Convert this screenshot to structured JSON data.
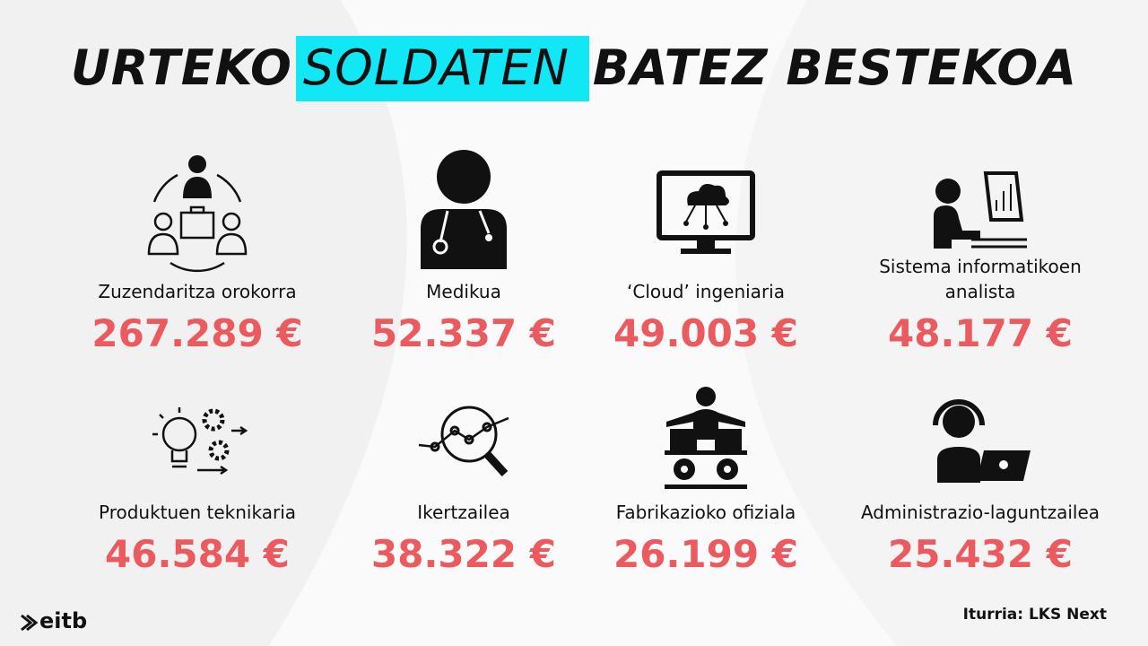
{
  "title": {
    "before": "URTEKO",
    "highlight": "SOLDATEN",
    "after": "BATEZ BESTEKOA"
  },
  "items": [
    {
      "label": "Zuzendaritza orokorra",
      "value": "267.289 €"
    },
    {
      "label": "Medikua",
      "value": "52.337 €"
    },
    {
      "label": "‘Cloud’ ingeniaria",
      "value": "49.003 €"
    },
    {
      "label": "Sistema informatikoen analista",
      "value": "48.177 €"
    },
    {
      "label": "Produktuen teknikaria",
      "value": "46.584 €"
    },
    {
      "label": "Ikertzailea",
      "value": "38.322 €"
    },
    {
      "label": "Fabrikazioko ofiziala",
      "value": "26.199 €"
    },
    {
      "label": "Administrazio-laguntzailea",
      "value": "25.432 €"
    }
  ],
  "source": "Iturria: LKS Next",
  "logo": "eitb"
}
